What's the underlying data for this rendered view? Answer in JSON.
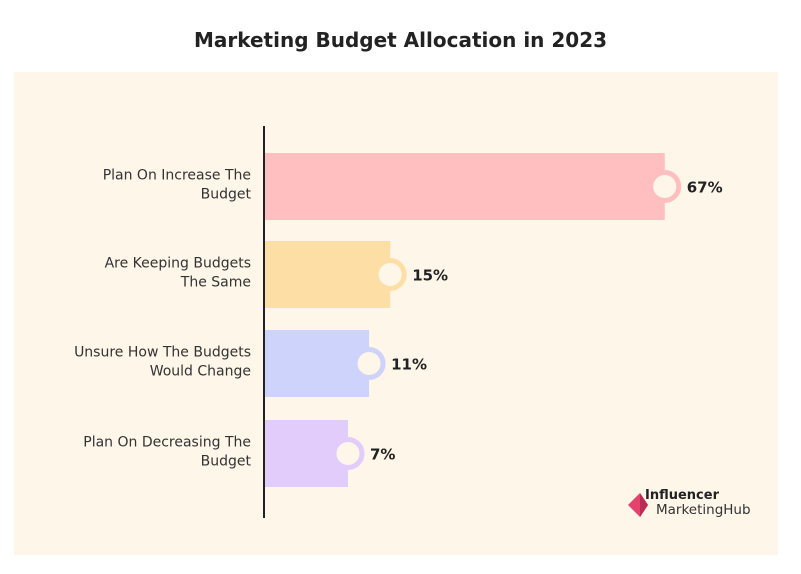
{
  "chart_data": {
    "type": "bar",
    "orientation": "horizontal",
    "title": "Marketing Budget Allocation in 2023",
    "categories": [
      [
        "Plan On Increase The",
        "Budget"
      ],
      [
        "Are Keeping Budgets",
        "The Same"
      ],
      [
        "Unsure How The Budgets",
        "Would Change"
      ],
      [
        "Plan On Decreasing The",
        "Budget"
      ]
    ],
    "values": [
      67,
      15,
      11,
      7
    ],
    "labels": [
      "67%",
      "15%",
      "11%",
      "7%"
    ],
    "colors": [
      "#ffbfc0",
      "#fddfa6",
      "#cdd3fb",
      "#e1ccfb"
    ],
    "background": "#fdf6e9",
    "grid": false
  },
  "logo": {
    "line1": "Influencer",
    "line2": "MarketingHub",
    "color": "#e5426e"
  }
}
